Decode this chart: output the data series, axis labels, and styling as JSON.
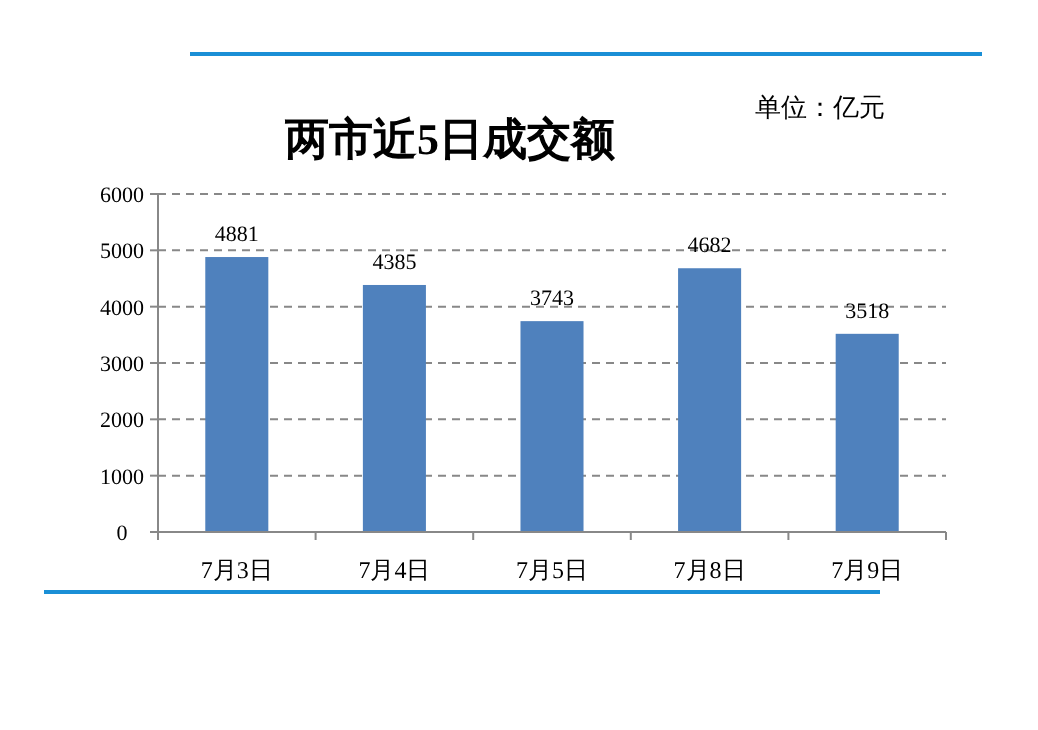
{
  "chart_data": {
    "type": "bar",
    "title": "两市近5日成交额",
    "annotations": [
      "单位：亿元"
    ],
    "categories": [
      "7月3日",
      "7月4日",
      "7月5日",
      "7月8日",
      "7月9日"
    ],
    "values": [
      4881,
      4385,
      3743,
      4682,
      3518
    ],
    "color": "#4f81bd",
    "ylim": [
      0,
      6000
    ],
    "yticks": [
      0,
      1000,
      2000,
      3000,
      4000,
      5000,
      6000
    ],
    "grid": "y",
    "data_labels": true
  }
}
